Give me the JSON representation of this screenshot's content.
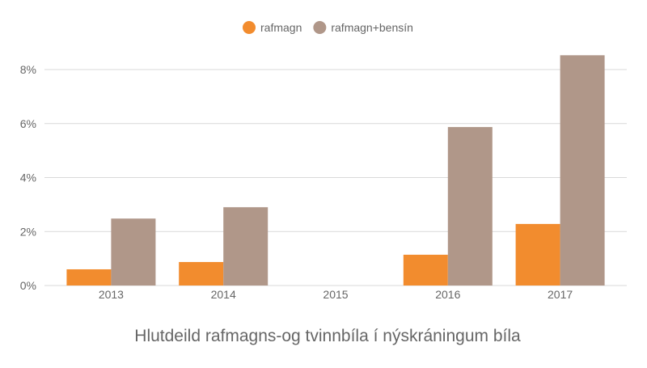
{
  "chart_data": {
    "type": "bar",
    "title": "Hlutdeild rafmagns-og tvinnbíla í nýskráningum bíla",
    "xlabel": "",
    "ylabel": "",
    "categories": [
      "2013",
      "2014",
      "2015",
      "2016",
      "2017"
    ],
    "series": [
      {
        "name": "rafmagn",
        "color": "#f28c2e",
        "values": [
          0.6,
          0.87,
          0,
          1.14,
          2.28
        ]
      },
      {
        "name": "rafmagn+bensín",
        "color": "#b09789",
        "values": [
          2.48,
          2.9,
          0,
          5.87,
          8.53
        ]
      }
    ],
    "ylim": [
      0,
      8.5
    ],
    "yticks": [
      0,
      2,
      4,
      6,
      8
    ],
    "ytick_labels": [
      "0%",
      "2%",
      "4%",
      "6%",
      "8%"
    ],
    "grid": true,
    "legend_position": "top-center"
  }
}
